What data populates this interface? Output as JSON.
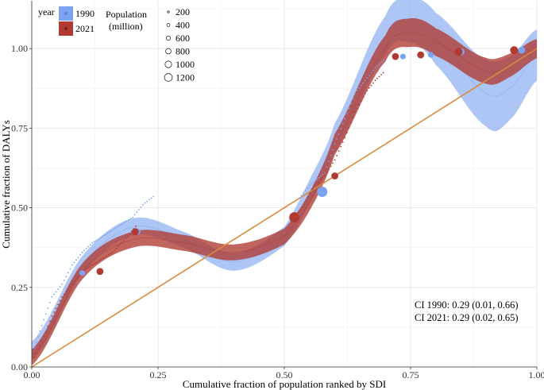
{
  "chart_data": {
    "type": "scatter",
    "title": "",
    "xlabel": "Cumulative fraction of population ranked by SDI",
    "ylabel": "Cumulative fraction of DALYs",
    "xlim": [
      0,
      1
    ],
    "ylim": [
      0,
      1.15
    ],
    "x_ticks": [
      "0.00",
      "0.25",
      "0.50",
      "0.75",
      "1.00"
    ],
    "y_ticks": [
      "0.00",
      "0.25",
      "0.50",
      "0.75",
      "1.00"
    ],
    "grid": true,
    "colors": {
      "y1990": "#7ba3f0",
      "y2021": "#b03a32",
      "equality_line": "#d98a3d"
    },
    "legend": {
      "year_title": "year",
      "years": [
        "1990",
        "2021"
      ],
      "population_title_line1": "Population",
      "population_title_line2": "(million)",
      "population_sizes": [
        "200",
        "400",
        "600",
        "800",
        "1000",
        "1200"
      ],
      "position": "top-left"
    },
    "annotations": {
      "ci_1990": "CI 1990: 0.29 (0.01, 0.66)",
      "ci_2021": "CI 2021: 0.29 (0.02, 0.65)"
    },
    "series": [
      {
        "name": "1990",
        "fit_center": [
          [
            0,
            0.05
          ],
          [
            0.1,
            0.32
          ],
          [
            0.2,
            0.44
          ],
          [
            0.3,
            0.4
          ],
          [
            0.4,
            0.33
          ],
          [
            0.5,
            0.41
          ],
          [
            0.55,
            0.55
          ],
          [
            0.6,
            0.72
          ],
          [
            0.7,
            1.04
          ],
          [
            0.75,
            1.09
          ],
          [
            0.8,
            1.03
          ],
          [
            0.9,
            0.86
          ],
          [
            0.95,
            0.88
          ],
          [
            1.0,
            0.98
          ]
        ],
        "fit_halfwidth": [
          [
            0,
            0.03
          ],
          [
            0.3,
            0.025
          ],
          [
            0.5,
            0.03
          ],
          [
            0.75,
            0.07
          ],
          [
            0.92,
            0.11
          ],
          [
            1.0,
            0.08
          ]
        ],
        "curve_points": [
          [
            0.005,
            0.06
          ],
          [
            0.02,
            0.13
          ],
          [
            0.04,
            0.22
          ],
          [
            0.06,
            0.26
          ],
          [
            0.08,
            0.32
          ],
          [
            0.1,
            0.36
          ],
          [
            0.12,
            0.39
          ],
          [
            0.15,
            0.42
          ],
          [
            0.18,
            0.45
          ],
          [
            0.2,
            0.47
          ],
          [
            0.22,
            0.51
          ],
          [
            0.245,
            0.54
          ],
          [
            0.53,
            0.53
          ],
          [
            0.55,
            0.57
          ],
          [
            0.58,
            0.61
          ],
          [
            0.6,
            0.7
          ],
          [
            0.62,
            0.78
          ],
          [
            0.64,
            0.86
          ],
          [
            0.66,
            0.9
          ],
          [
            0.68,
            0.94
          ],
          [
            0.7,
            0.97
          ]
        ],
        "bubbles": [
          {
            "x": 0.1,
            "y": 0.295,
            "pop": 200
          },
          {
            "x": 0.21,
            "y": 0.425,
            "pop": 200
          },
          {
            "x": 0.575,
            "y": 0.55,
            "pop": 1200
          },
          {
            "x": 0.735,
            "y": 0.975,
            "pop": 200
          },
          {
            "x": 0.79,
            "y": 0.98,
            "pop": 200
          },
          {
            "x": 0.85,
            "y": 0.99,
            "pop": 400
          },
          {
            "x": 0.97,
            "y": 0.995,
            "pop": 400
          }
        ]
      },
      {
        "name": "2021",
        "fit_center": [
          [
            0,
            0.03
          ],
          [
            0.1,
            0.3
          ],
          [
            0.2,
            0.4
          ],
          [
            0.3,
            0.39
          ],
          [
            0.4,
            0.36
          ],
          [
            0.5,
            0.41
          ],
          [
            0.55,
            0.52
          ],
          [
            0.6,
            0.7
          ],
          [
            0.7,
            1.0
          ],
          [
            0.75,
            1.05
          ],
          [
            0.8,
            1.02
          ],
          [
            0.9,
            0.93
          ],
          [
            0.95,
            0.95
          ],
          [
            1.0,
            1.0
          ]
        ],
        "fit_halfwidth": [
          [
            0,
            0.025
          ],
          [
            0.3,
            0.025
          ],
          [
            0.5,
            0.025
          ],
          [
            0.75,
            0.045
          ],
          [
            0.92,
            0.04
          ],
          [
            1.0,
            0.03
          ]
        ],
        "curve_points": [
          [
            0.005,
            0.03
          ],
          [
            0.02,
            0.08
          ],
          [
            0.04,
            0.16
          ],
          [
            0.06,
            0.22
          ],
          [
            0.08,
            0.26
          ],
          [
            0.1,
            0.3
          ],
          [
            0.13,
            0.33
          ],
          [
            0.16,
            0.36
          ],
          [
            0.19,
            0.41
          ],
          [
            0.21,
            0.45
          ],
          [
            0.52,
            0.47
          ],
          [
            0.54,
            0.51
          ],
          [
            0.56,
            0.57
          ],
          [
            0.58,
            0.6
          ],
          [
            0.6,
            0.65
          ],
          [
            0.62,
            0.72
          ],
          [
            0.64,
            0.8
          ],
          [
            0.66,
            0.86
          ],
          [
            0.68,
            0.9
          ],
          [
            0.7,
            0.93
          ]
        ],
        "bubbles": [
          {
            "x": 0.135,
            "y": 0.3,
            "pop": 400
          },
          {
            "x": 0.205,
            "y": 0.425,
            "pop": 400
          },
          {
            "x": 0.52,
            "y": 0.47,
            "pop": 1200
          },
          {
            "x": 0.6,
            "y": 0.6,
            "pop": 400
          },
          {
            "x": 0.72,
            "y": 0.975,
            "pop": 400
          },
          {
            "x": 0.77,
            "y": 0.98,
            "pop": 400
          },
          {
            "x": 0.845,
            "y": 0.99,
            "pop": 600
          },
          {
            "x": 0.955,
            "y": 0.995,
            "pop": 600
          }
        ]
      }
    ]
  }
}
